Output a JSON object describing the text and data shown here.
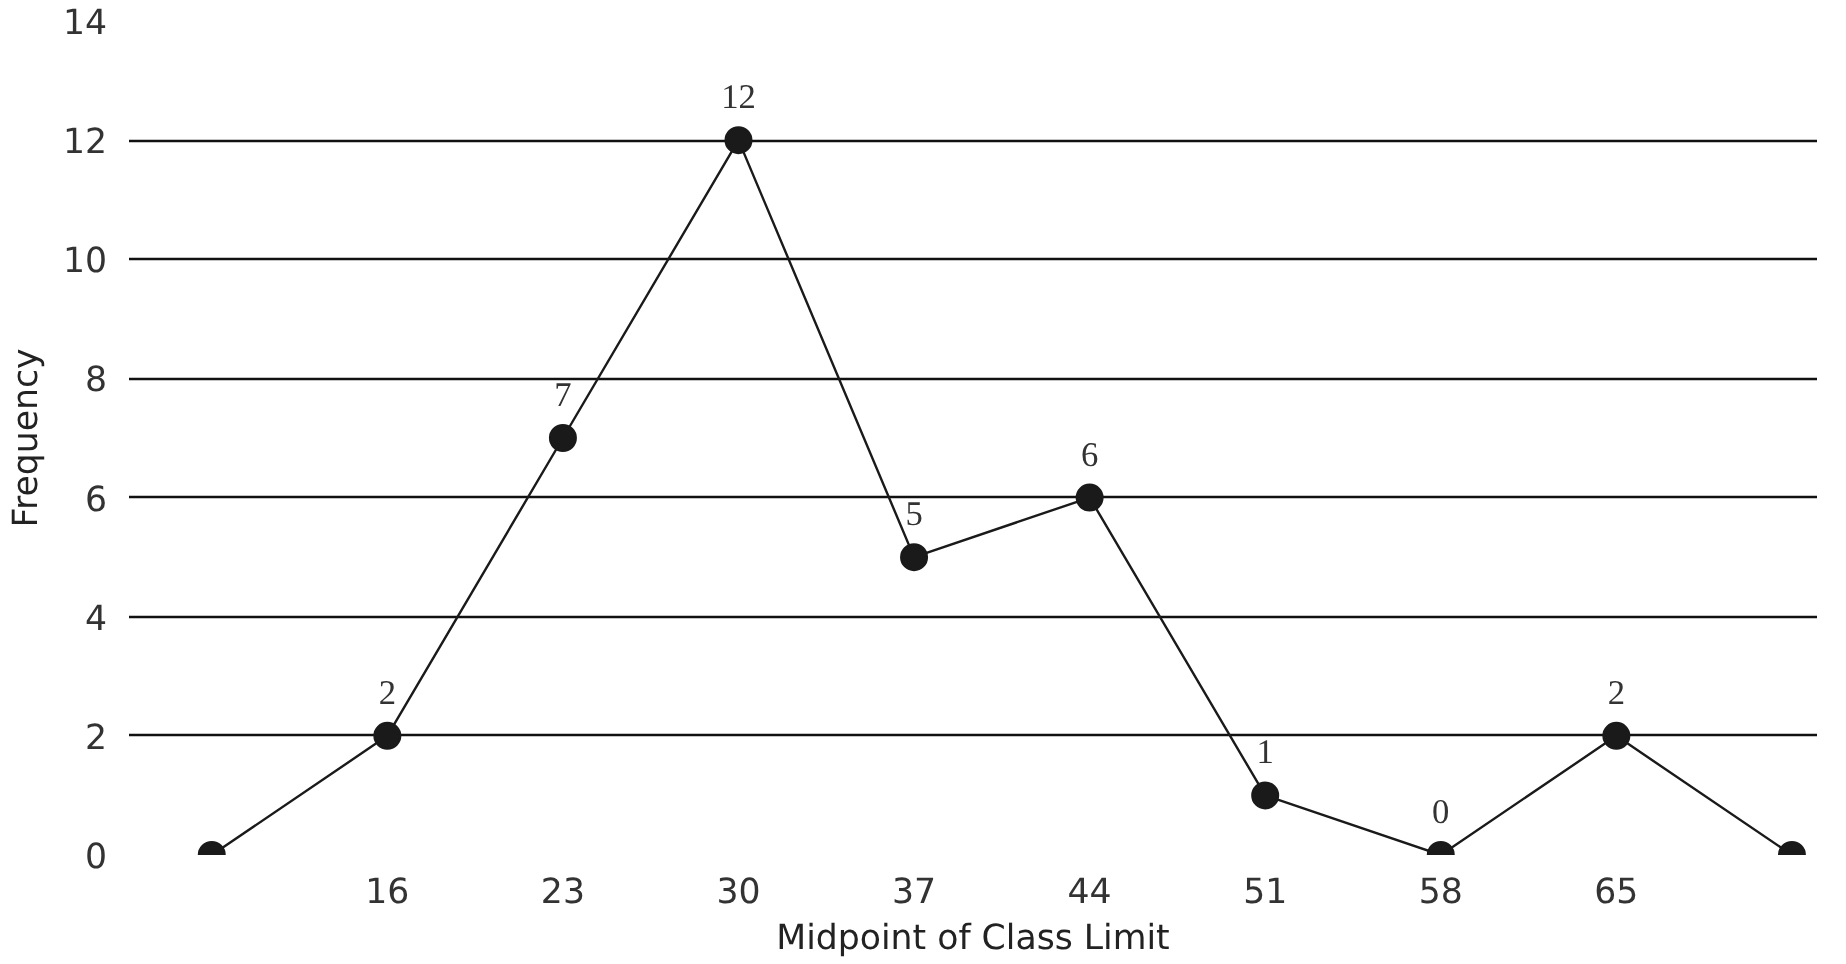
{
  "chart_data": {
    "type": "line",
    "xlabel": "Midpoint of Class Limit",
    "ylabel": "Frequency",
    "x": [
      9,
      16,
      23,
      30,
      37,
      44,
      51,
      58,
      65,
      72
    ],
    "series": [
      {
        "color": "#1a1a1a",
        "values": [
          0,
          2,
          7,
          12,
          5,
          6,
          1,
          0,
          2,
          0
        ],
        "value_labels": [
          null,
          "2",
          "7",
          "12",
          "5",
          "6",
          "1",
          "0",
          "2",
          null
        ]
      }
    ],
    "xlim": [
      5.7,
      73
    ],
    "xticks": [
      16,
      23,
      30,
      37,
      44,
      51,
      58,
      65
    ],
    "ylim": [
      0,
      14
    ],
    "yticks": [
      0,
      2,
      4,
      6,
      8,
      10,
      12,
      14
    ],
    "grid": "y",
    "marker": "circle",
    "line_style": "solid"
  }
}
